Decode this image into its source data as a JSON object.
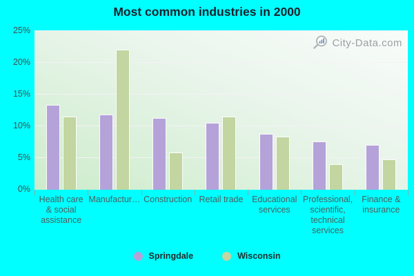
{
  "title": "Most common industries in 2000",
  "watermark": {
    "text": "City-Data.com"
  },
  "colors": {
    "background": "#00ffff",
    "springdale": "#b5a2d9",
    "wisconsin": "#c3d5a0",
    "gridline": "#f4eff7",
    "title_text": "#19222e",
    "axis_text": "#4c5e5c"
  },
  "legend": {
    "items": [
      {
        "label": "Springdale",
        "color": "#b5a2d9"
      },
      {
        "label": "Wisconsin",
        "color": "#c3d5a0"
      }
    ]
  },
  "chart_data": {
    "type": "bar",
    "title": "Most common industries in 2000",
    "categories": [
      "Health care & social assistance",
      "Manufactur…",
      "Construction",
      "Retail trade",
      "Educational services",
      "Professional, scientific, technical services",
      "Finance & insurance"
    ],
    "categories_display": [
      [
        "Health care",
        "& social",
        "assistance"
      ],
      [
        "Manufactur…"
      ],
      [
        "Construction"
      ],
      [
        "Retail trade"
      ],
      [
        "Educational",
        "services"
      ],
      [
        "Professional,",
        "scientific,",
        "technical",
        "services"
      ],
      [
        "Finance &",
        "insurance"
      ]
    ],
    "series": [
      {
        "name": "Springdale",
        "color": "#b5a2d9",
        "values": [
          13.4,
          11.8,
          11.3,
          10.5,
          8.8,
          7.6,
          7.1
        ]
      },
      {
        "name": "Wisconsin",
        "color": "#c3d5a0",
        "values": [
          11.5,
          22.1,
          5.9,
          11.5,
          8.4,
          4.0,
          4.8
        ]
      }
    ],
    "xlabel": "",
    "ylabel": "",
    "ylim": [
      0,
      25
    ],
    "ytick_interval": 5,
    "yticks": [
      "0%",
      "5%",
      "10%",
      "15%",
      "20%",
      "25%"
    ],
    "grid": true,
    "legend_position": "bottom"
  }
}
